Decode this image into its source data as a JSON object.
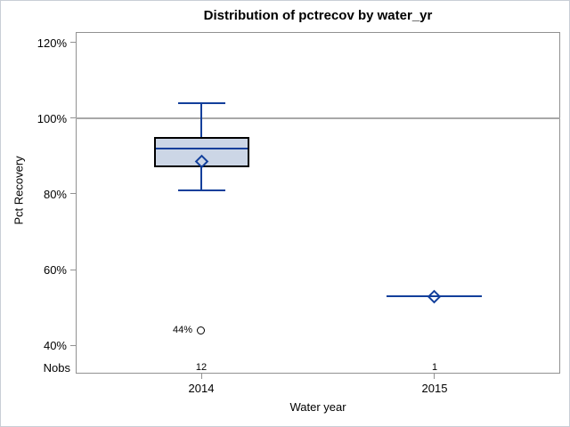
{
  "colors": {
    "blue_line": "#123f9b",
    "box_fill": "#ccd6e6",
    "box_border": "#000000",
    "frame_gray": "#919191",
    "refline_gray": "#a8a8a8",
    "text": "#000000",
    "canvas_border": "#c9ced6"
  },
  "chart_data": {
    "type": "boxplot",
    "title": "Distribution of pctrecov by water_yr",
    "xlabel": "Water year",
    "ylabel": "Pct Recovery",
    "nobs_label": "Nobs",
    "grid": false,
    "legend": "none",
    "yaxis": {
      "ylim": [
        32.6,
        122.7
      ],
      "ticks": [
        {
          "value": 120,
          "label": "120%"
        },
        {
          "value": 100,
          "label": "100%"
        },
        {
          "value": 80,
          "label": "80%"
        },
        {
          "value": 60,
          "label": "60%"
        },
        {
          "value": 40,
          "label": "40%"
        }
      ]
    },
    "refline": {
      "value": 100
    },
    "groups": [
      {
        "label": "2014",
        "nobs": "12",
        "stats": {
          "whisker_low": 81,
          "q1": 87,
          "median": 92,
          "q3": 95,
          "whisker_high": 104,
          "mean": 88.5
        },
        "outliers": [
          {
            "value": 44,
            "label": "44%"
          }
        ]
      },
      {
        "label": "2015",
        "nobs": "1",
        "stats": {
          "whisker_low": 53,
          "q1": 53,
          "median": 53,
          "q3": 53,
          "whisker_high": 53,
          "mean": 53
        },
        "outliers": []
      }
    ]
  }
}
